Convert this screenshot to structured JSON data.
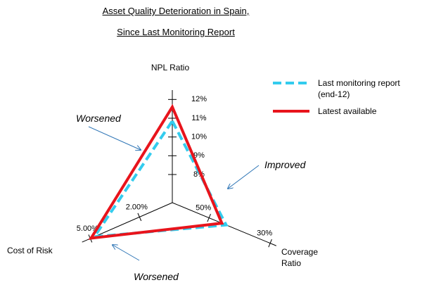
{
  "chart_data": {
    "type": "radar",
    "title": [
      "Asset Quality Deterioration in Spain,",
      "Since Last Monitoring Report"
    ],
    "axes": [
      {
        "label": "NPL Ratio",
        "lim": [
          6.5,
          12.5
        ],
        "ticks": [
          {
            "value": 8,
            "label": "8%"
          },
          {
            "value": 9,
            "label": "9%"
          },
          {
            "value": 10,
            "label": "10%"
          },
          {
            "value": 11,
            "label": "11%"
          },
          {
            "value": 12,
            "label": "12%"
          }
        ]
      },
      {
        "label": "Coverage Ratio",
        "lim": [
          62,
          28
        ],
        "ticks": [
          {
            "value": 50,
            "label": "50%"
          },
          {
            "value": 30,
            "label": "30%"
          }
        ]
      },
      {
        "label": "Cost of Risk",
        "lim": [
          0,
          5.5
        ],
        "ticks": [
          {
            "value": 2,
            "label": "2.00%"
          },
          {
            "value": 5,
            "label": "5.00%"
          }
        ]
      }
    ],
    "series": [
      {
        "name": "Last monitoring report (end-12)",
        "color": "#33ccee",
        "dashed": true,
        "values": [
          10.85,
          44.4,
          4.75
        ]
      },
      {
        "name": "Latest available",
        "color": "#e8141c",
        "dashed": false,
        "values": [
          11.6,
          45.8,
          4.95
        ]
      }
    ],
    "annotations": [
      "Worsened",
      "Improved",
      "Worsened"
    ]
  }
}
